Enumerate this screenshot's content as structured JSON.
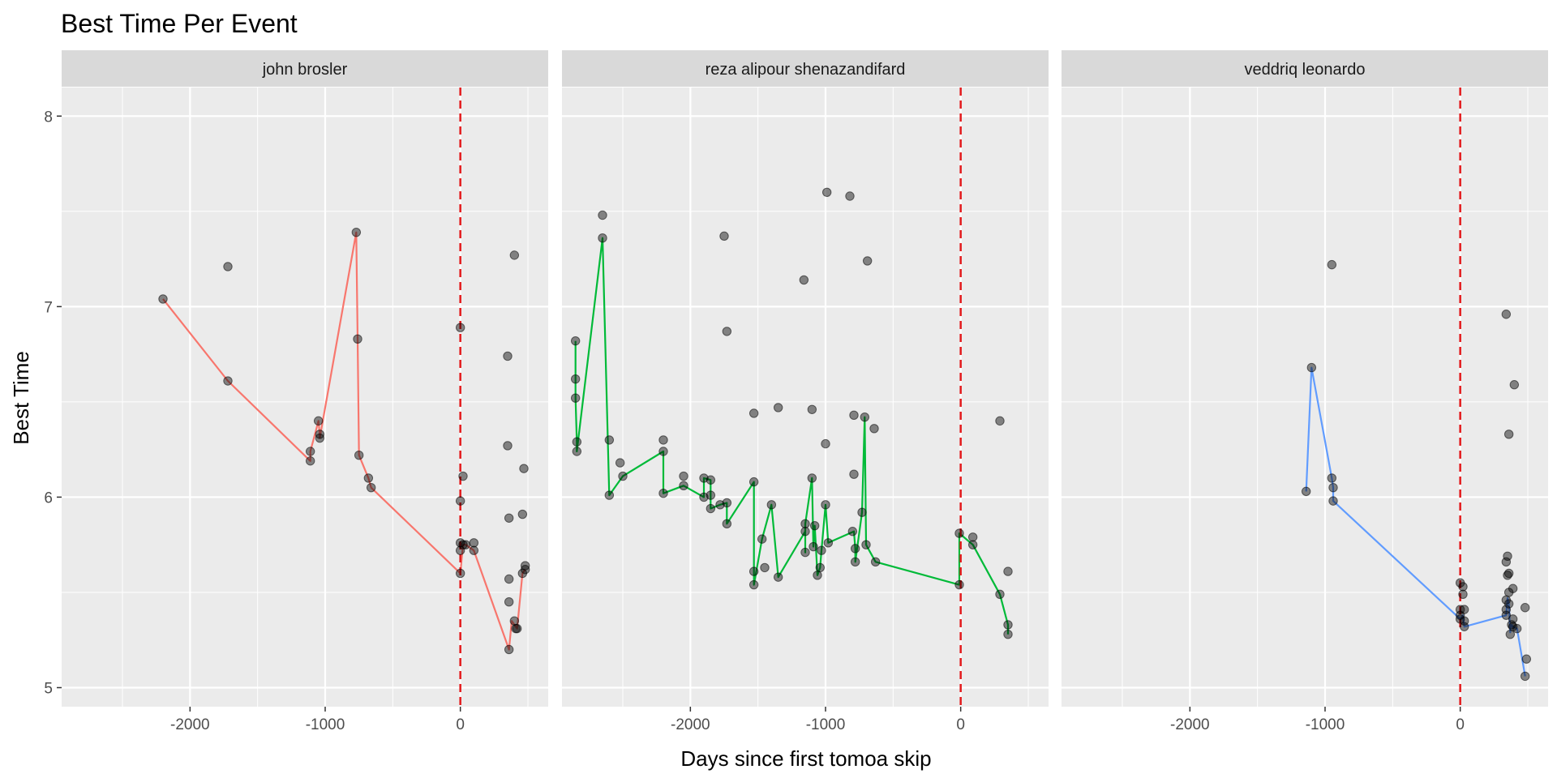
{
  "chart_data": {
    "type": "scatter",
    "title": "Best Time Per Event",
    "xlabel": "Days since first tomoa skip",
    "ylabel": "Best Time",
    "xlim": [
      -2950,
      650
    ],
    "ylim": [
      4.9,
      8.15
    ],
    "x_ticks": [
      -2000,
      -1000,
      0
    ],
    "x_tick_labels": [
      "-2000",
      "-1000",
      "0"
    ],
    "y_ticks": [
      5,
      6,
      7,
      8
    ],
    "y_tick_labels": [
      "5",
      "6",
      "7",
      "8"
    ],
    "vline_x": 0,
    "grid": true,
    "legend": "none",
    "panels": [
      {
        "name": "john brosler",
        "line_color": "#F8766D",
        "line": [
          [
            -2200,
            7.04
          ],
          [
            -1720,
            6.61
          ],
          [
            -1110,
            6.19
          ],
          [
            -1110,
            6.24
          ],
          [
            -1050,
            6.4
          ],
          [
            -1040,
            6.33
          ],
          [
            -1040,
            6.31
          ],
          [
            -770,
            7.39
          ],
          [
            -760,
            6.83
          ],
          [
            -750,
            6.22
          ],
          [
            -680,
            6.1
          ],
          [
            -660,
            6.05
          ],
          [
            0,
            5.6
          ],
          [
            20,
            5.75
          ],
          [
            40,
            5.75
          ],
          [
            100,
            5.72
          ],
          [
            360,
            5.2
          ],
          [
            380,
            5.35
          ],
          [
            420,
            5.31
          ],
          [
            460,
            5.6
          ],
          [
            480,
            5.62
          ]
        ],
        "points": [
          [
            -2200,
            7.04
          ],
          [
            -1720,
            6.61
          ],
          [
            -1720,
            7.21
          ],
          [
            -1110,
            6.19
          ],
          [
            -1110,
            6.24
          ],
          [
            -1050,
            6.4
          ],
          [
            -1040,
            6.33
          ],
          [
            -1040,
            6.31
          ],
          [
            -770,
            7.39
          ],
          [
            -760,
            6.83
          ],
          [
            -750,
            6.22
          ],
          [
            -680,
            6.1
          ],
          [
            -660,
            6.05
          ],
          [
            0,
            6.89
          ],
          [
            0,
            5.98
          ],
          [
            0,
            5.76
          ],
          [
            0,
            5.72
          ],
          [
            0,
            5.6
          ],
          [
            20,
            6.11
          ],
          [
            20,
            5.75
          ],
          [
            40,
            5.75
          ],
          [
            100,
            5.76
          ],
          [
            100,
            5.72
          ],
          [
            350,
            6.74
          ],
          [
            350,
            6.27
          ],
          [
            360,
            5.89
          ],
          [
            360,
            5.57
          ],
          [
            360,
            5.45
          ],
          [
            360,
            5.2
          ],
          [
            400,
            7.27
          ],
          [
            400,
            5.35
          ],
          [
            420,
            5.31
          ],
          [
            410,
            5.31
          ],
          [
            460,
            5.91
          ],
          [
            470,
            6.15
          ],
          [
            460,
            5.6
          ],
          [
            480,
            5.62
          ],
          [
            480,
            5.64
          ]
        ]
      },
      {
        "name": "reza alipour shenazandifard",
        "line_color": "#00BA38",
        "line": [
          [
            -2850,
            6.82
          ],
          [
            -2850,
            6.62
          ],
          [
            -2850,
            6.52
          ],
          [
            -2840,
            6.29
          ],
          [
            -2840,
            6.24
          ],
          [
            -2650,
            7.36
          ],
          [
            -2600,
            6.01
          ],
          [
            -2500,
            6.11
          ],
          [
            -2200,
            6.24
          ],
          [
            -2200,
            6.02
          ],
          [
            -2050,
            6.06
          ],
          [
            -1900,
            6.0
          ],
          [
            -1900,
            6.1
          ],
          [
            -1850,
            6.09
          ],
          [
            -1850,
            5.94
          ],
          [
            -1780,
            5.96
          ],
          [
            -1730,
            5.97
          ],
          [
            -1730,
            5.86
          ],
          [
            -1530,
            6.08
          ],
          [
            -1530,
            5.61
          ],
          [
            -1530,
            5.54
          ],
          [
            -1470,
            5.78
          ],
          [
            -1400,
            5.96
          ],
          [
            -1350,
            5.58
          ],
          [
            -1150,
            5.82
          ],
          [
            -1150,
            5.71
          ],
          [
            -1150,
            5.86
          ],
          [
            -1100,
            6.1
          ],
          [
            -1090,
            5.74
          ],
          [
            -1080,
            5.85
          ],
          [
            -1060,
            5.59
          ],
          [
            -1040,
            5.63
          ],
          [
            -1030,
            5.72
          ],
          [
            -1000,
            5.96
          ],
          [
            -980,
            5.76
          ],
          [
            -790,
            5.82
          ],
          [
            -780,
            5.73
          ],
          [
            -780,
            5.66
          ],
          [
            -730,
            5.92
          ],
          [
            -710,
            6.42
          ],
          [
            -700,
            5.75
          ],
          [
            -630,
            5.66
          ],
          [
            -10,
            5.54
          ],
          [
            -10,
            5.81
          ],
          [
            90,
            5.75
          ],
          [
            290,
            5.49
          ],
          [
            350,
            5.33
          ],
          [
            350,
            5.28
          ]
        ],
        "points": [
          [
            -2850,
            6.82
          ],
          [
            -2850,
            6.62
          ],
          [
            -2850,
            6.52
          ],
          [
            -2840,
            6.29
          ],
          [
            -2840,
            6.24
          ],
          [
            -2650,
            7.48
          ],
          [
            -2650,
            7.36
          ],
          [
            -2600,
            6.3
          ],
          [
            -2600,
            6.01
          ],
          [
            -2520,
            6.18
          ],
          [
            -2500,
            6.11
          ],
          [
            -2200,
            6.3
          ],
          [
            -2200,
            6.24
          ],
          [
            -2200,
            6.02
          ],
          [
            -2050,
            6.11
          ],
          [
            -2050,
            6.06
          ],
          [
            -1900,
            6.1
          ],
          [
            -1900,
            6.0
          ],
          [
            -1850,
            6.09
          ],
          [
            -1850,
            6.01
          ],
          [
            -1850,
            5.94
          ],
          [
            -1780,
            5.96
          ],
          [
            -1750,
            7.37
          ],
          [
            -1730,
            6.87
          ],
          [
            -1730,
            5.97
          ],
          [
            -1730,
            5.86
          ],
          [
            -1530,
            6.44
          ],
          [
            -1530,
            6.08
          ],
          [
            -1530,
            5.61
          ],
          [
            -1530,
            5.54
          ],
          [
            -1470,
            5.78
          ],
          [
            -1450,
            5.63
          ],
          [
            -1400,
            5.96
          ],
          [
            -1350,
            6.47
          ],
          [
            -1350,
            5.58
          ],
          [
            -1160,
            7.14
          ],
          [
            -1150,
            5.86
          ],
          [
            -1150,
            5.82
          ],
          [
            -1150,
            5.71
          ],
          [
            -1100,
            6.46
          ],
          [
            -1100,
            6.1
          ],
          [
            -1090,
            5.74
          ],
          [
            -1080,
            5.85
          ],
          [
            -1060,
            5.59
          ],
          [
            -1040,
            5.63
          ],
          [
            -1030,
            5.72
          ],
          [
            -990,
            7.6
          ],
          [
            -1000,
            6.28
          ],
          [
            -1000,
            5.96
          ],
          [
            -980,
            5.76
          ],
          [
            -820,
            7.58
          ],
          [
            -790,
            6.43
          ],
          [
            -790,
            6.12
          ],
          [
            -800,
            5.82
          ],
          [
            -780,
            5.73
          ],
          [
            -780,
            5.66
          ],
          [
            -730,
            5.92
          ],
          [
            -710,
            6.42
          ],
          [
            -690,
            7.24
          ],
          [
            -700,
            5.75
          ],
          [
            -640,
            6.36
          ],
          [
            -630,
            5.66
          ],
          [
            -10,
            5.81
          ],
          [
            -10,
            5.54
          ],
          [
            90,
            5.79
          ],
          [
            90,
            5.75
          ],
          [
            290,
            6.4
          ],
          [
            290,
            5.49
          ],
          [
            350,
            5.61
          ],
          [
            350,
            5.33
          ],
          [
            350,
            5.28
          ]
        ]
      },
      {
        "name": "veddriq leonardo",
        "line_color": "#619CFF",
        "line": [
          [
            -1140,
            6.03
          ],
          [
            -1100,
            6.68
          ],
          [
            -950,
            6.1
          ],
          [
            -940,
            6.05
          ],
          [
            -940,
            5.98
          ],
          [
            0,
            5.36
          ],
          [
            20,
            5.38
          ],
          [
            30,
            5.32
          ],
          [
            340,
            5.38
          ],
          [
            350,
            5.47
          ],
          [
            360,
            5.44
          ],
          [
            370,
            5.29
          ],
          [
            380,
            5.33
          ],
          [
            390,
            5.32
          ],
          [
            420,
            5.31
          ],
          [
            480,
            5.06
          ]
        ],
        "points": [
          [
            -1140,
            6.03
          ],
          [
            -1100,
            6.68
          ],
          [
            -950,
            7.22
          ],
          [
            -950,
            6.1
          ],
          [
            -940,
            6.05
          ],
          [
            -940,
            5.98
          ],
          [
            0,
            5.55
          ],
          [
            0,
            5.41
          ],
          [
            0,
            5.38
          ],
          [
            0,
            5.36
          ],
          [
            20,
            5.53
          ],
          [
            20,
            5.49
          ],
          [
            30,
            5.41
          ],
          [
            30,
            5.35
          ],
          [
            30,
            5.32
          ],
          [
            340,
            6.96
          ],
          [
            340,
            5.66
          ],
          [
            350,
            5.69
          ],
          [
            350,
            5.59
          ],
          [
            340,
            5.46
          ],
          [
            340,
            5.41
          ],
          [
            340,
            5.38
          ],
          [
            360,
            6.33
          ],
          [
            360,
            5.6
          ],
          [
            360,
            5.5
          ],
          [
            360,
            5.44
          ],
          [
            370,
            5.28
          ],
          [
            380,
            5.33
          ],
          [
            390,
            5.52
          ],
          [
            390,
            5.36
          ],
          [
            390,
            5.32
          ],
          [
            400,
            6.59
          ],
          [
            420,
            5.31
          ],
          [
            480,
            5.42
          ],
          [
            480,
            5.06
          ],
          [
            490,
            5.15
          ]
        ]
      }
    ]
  }
}
